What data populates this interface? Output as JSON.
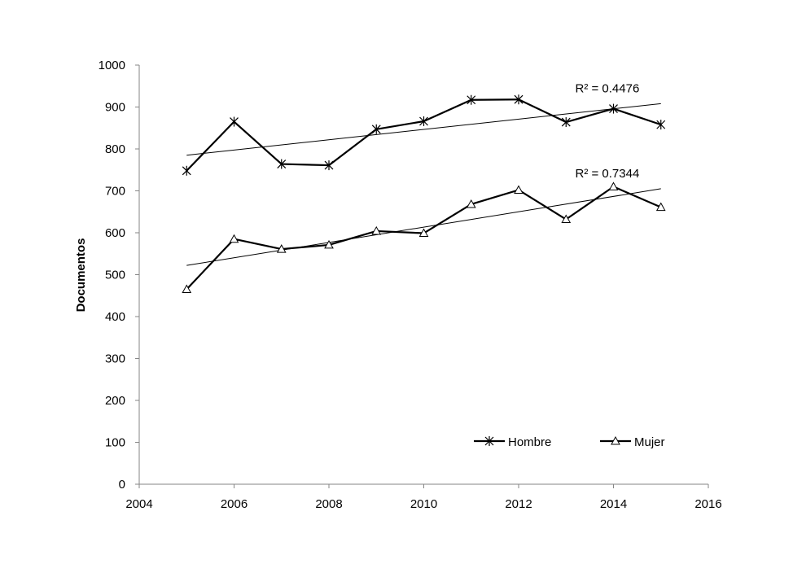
{
  "chart_data": {
    "type": "line",
    "title": "",
    "xlabel": "",
    "ylabel": "Documentos",
    "xlim": [
      2004,
      2016
    ],
    "ylim": [
      0,
      1000
    ],
    "x_ticks": [
      "2004",
      "2006",
      "2008",
      "2010",
      "2012",
      "2014",
      "2016"
    ],
    "y_ticks": [
      "0",
      "100",
      "200",
      "300",
      "400",
      "500",
      "600",
      "700",
      "800",
      "900",
      "1000"
    ],
    "grid": false,
    "legend_position": "bottom-right",
    "x": [
      2005,
      2006,
      2007,
      2008,
      2009,
      2010,
      2011,
      2012,
      2013,
      2014,
      2015
    ],
    "series": [
      {
        "name": "Hombre",
        "marker": "asterisk",
        "values": [
          748,
          865,
          764,
          761,
          847,
          866,
          917,
          918,
          864,
          896,
          858
        ],
        "trendline": {
          "from": [
            2005,
            785
          ],
          "to": [
            2015,
            908
          ],
          "label": "R² = 0.4476"
        }
      },
      {
        "name": "Mujer",
        "marker": "triangle",
        "values": [
          465,
          585,
          561,
          571,
          604,
          599,
          668,
          702,
          632,
          710,
          661
        ],
        "trendline": {
          "from": [
            2005,
            522
          ],
          "to": [
            2015,
            705
          ],
          "label": "R² = 0.7344"
        }
      }
    ],
    "colors": {
      "line": "#000000",
      "trend": "#000000"
    }
  }
}
